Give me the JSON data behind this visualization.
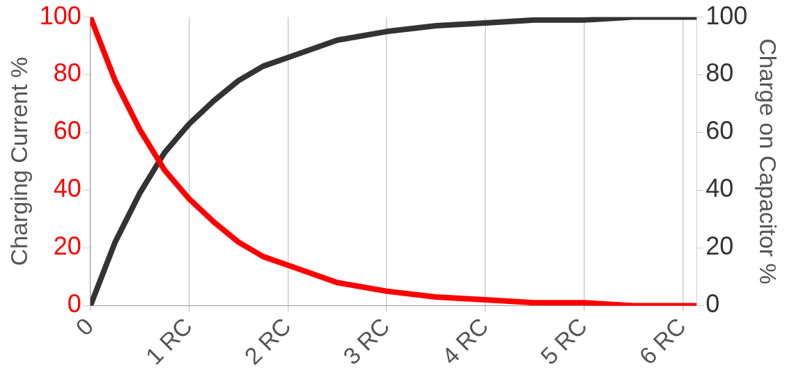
{
  "chart_data": {
    "type": "line",
    "ylabel": "Charging Current %",
    "y2label": "Charge on Capacitor %",
    "x": [
      0,
      0.25,
      0.5,
      0.75,
      1,
      1.25,
      1.5,
      1.75,
      2,
      2.5,
      3,
      3.5,
      4,
      4.5,
      5,
      5.5,
      6,
      6.14
    ],
    "series": [
      {
        "color": "#ff0000",
        "axis": "y",
        "values": [
          100,
          78,
          61,
          47,
          37,
          29,
          22,
          17,
          14,
          8,
          5,
          3,
          2,
          1,
          1,
          0,
          0,
          0
        ]
      },
      {
        "color": "#333333",
        "axis": "y2",
        "values": [
          0,
          22,
          39,
          53,
          63,
          71,
          78,
          83,
          86,
          92,
          95,
          97,
          98,
          99,
          99,
          100,
          100,
          100
        ]
      }
    ],
    "xlim": [
      0,
      6.14
    ],
    "xticks": [
      0,
      {
        "value": 1,
        "label": "1 RC"
      },
      {
        "value": 2,
        "label": "2 RC"
      },
      {
        "value": 3,
        "label": "3 RC"
      },
      {
        "value": 4,
        "label": "4 RC"
      },
      {
        "value": 5,
        "label": "5 RC"
      },
      {
        "value": 6,
        "label": "6 RC"
      }
    ],
    "ylim": [
      0,
      100
    ],
    "yticks": [
      0,
      20,
      40,
      60,
      80,
      100
    ],
    "y2lim": [
      0,
      100
    ],
    "y2ticks": [
      0,
      20,
      40,
      60,
      80,
      100
    ],
    "grid": "x",
    "legend": false,
    "marker": "none",
    "line_style": "solid"
  }
}
